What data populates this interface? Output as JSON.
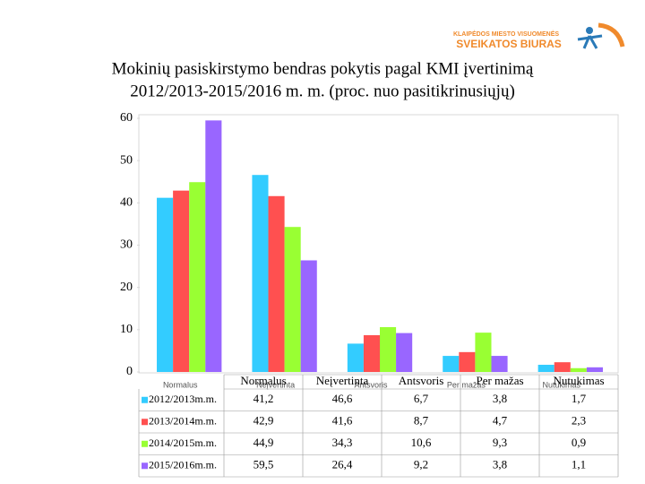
{
  "logo": {
    "line1": "KLAIPĖDOS MIESTO VISUOMENĖS",
    "line2": "SVEIKATOS BIURAS"
  },
  "chart_data": {
    "type": "bar",
    "title": "Mokinių pasiskirstymo bendras pokytis pagal KMI įvertinimą",
    "subtitle": "2012/2013-2015/2016 m. m. (proc. nuo pasitikrinusiųjų)",
    "categories": [
      "Normalus",
      "Neįvertinta",
      "Antsvoris",
      "Per mažas",
      "Nutukimas"
    ],
    "series": [
      {
        "name": "2012/2013m.m.",
        "color": "#33ccff",
        "values": [
          41.2,
          46.6,
          6.7,
          3.8,
          1.7
        ],
        "value_labels": [
          "41,2",
          "46,6",
          "6,7",
          "3,8",
          "1,7"
        ]
      },
      {
        "name": "2013/2014m.m.",
        "color": "#ff5050",
        "values": [
          42.9,
          41.6,
          8.7,
          4.7,
          2.3
        ],
        "value_labels": [
          "42,9",
          "41,6",
          "8,7",
          "4,7",
          "2,3"
        ]
      },
      {
        "name": "2014/2015m.m.",
        "color": "#99ff33",
        "values": [
          44.9,
          34.3,
          10.6,
          9.3,
          0.9
        ],
        "value_labels": [
          "44,9",
          "34,3",
          "10,6",
          "9,3",
          "0,9"
        ]
      },
      {
        "name": "2015/2016m.m.",
        "color": "#9966ff",
        "values": [
          59.5,
          26.4,
          9.2,
          3.8,
          1.1
        ],
        "value_labels": [
          "59,5",
          "26,4",
          "9,2",
          "3,8",
          "1,1"
        ]
      }
    ],
    "ylim": [
      0,
      60
    ],
    "yticks": [
      0,
      10,
      20,
      30,
      40,
      50,
      60
    ]
  }
}
